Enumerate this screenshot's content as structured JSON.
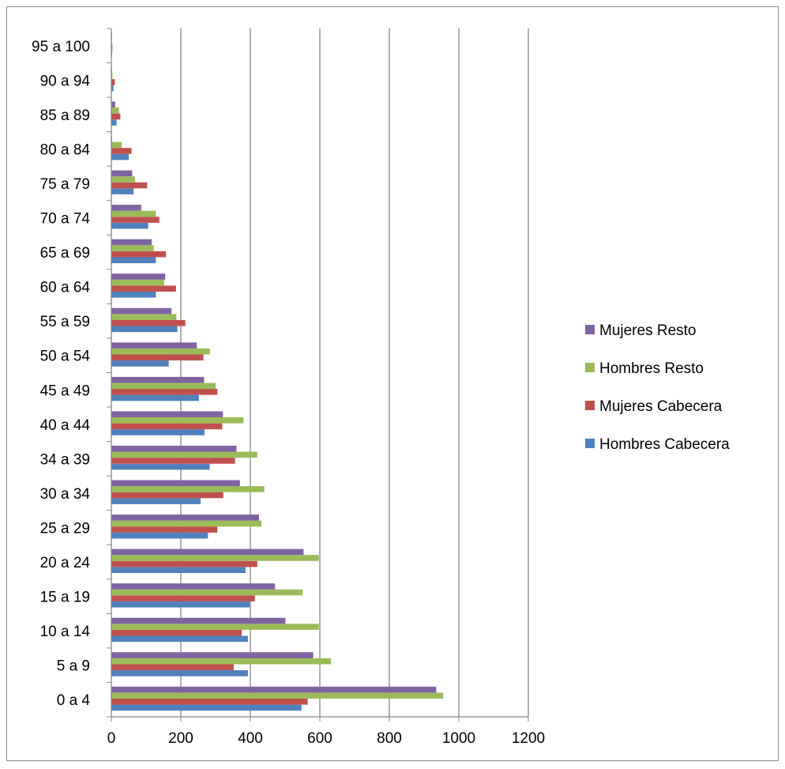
{
  "chart_data": {
    "type": "bar",
    "orientation": "horizontal",
    "categories": [
      "0 a 4",
      "5 a 9",
      "10 a 14",
      "15 a 19",
      "20 a 24",
      "25 a 29",
      "30 a 34",
      "34 a 39",
      "40 a 44",
      "45 a 49",
      "50 a 54",
      "55 a 59",
      "60 a 64",
      "65 a 69",
      "70 a 74",
      "75 a 79",
      "80 a 84",
      "85 a 89",
      "90 a 94",
      "95 a 100"
    ],
    "series": [
      {
        "name": "Hombres Cabecera",
        "color": "#4f81bd",
        "values": [
          547,
          393,
          393,
          398,
          386,
          278,
          257,
          283,
          268,
          252,
          165,
          190,
          128,
          128,
          106,
          64,
          50,
          15,
          6,
          1
        ]
      },
      {
        "name": "Mujeres Cabecera",
        "color": "#c0504d",
        "values": [
          565,
          352,
          375,
          413,
          420,
          305,
          322,
          356,
          319,
          305,
          265,
          213,
          186,
          157,
          138,
          103,
          58,
          26,
          10,
          3
        ]
      },
      {
        "name": "Hombres Resto",
        "color": "#9bbb59",
        "values": [
          955,
          632,
          597,
          550,
          597,
          432,
          440,
          420,
          380,
          300,
          284,
          187,
          152,
          122,
          128,
          68,
          30,
          22,
          3,
          1
        ]
      },
      {
        "name": "Mujeres Resto",
        "color": "#8064a2",
        "values": [
          935,
          581,
          501,
          471,
          553,
          425,
          370,
          360,
          321,
          267,
          246,
          173,
          155,
          116,
          86,
          60,
          1,
          11,
          1,
          1
        ]
      }
    ],
    "xlim": [
      0,
      1200
    ],
    "xticks": [
      "0",
      "200",
      "400",
      "600",
      "800",
      "1000",
      "1200"
    ],
    "grid": "vertical",
    "legend_position": "right",
    "legend_order": [
      "Mujeres Resto",
      "Hombres Resto",
      "Mujeres Cabecera",
      "Hombres Cabecera"
    ]
  }
}
